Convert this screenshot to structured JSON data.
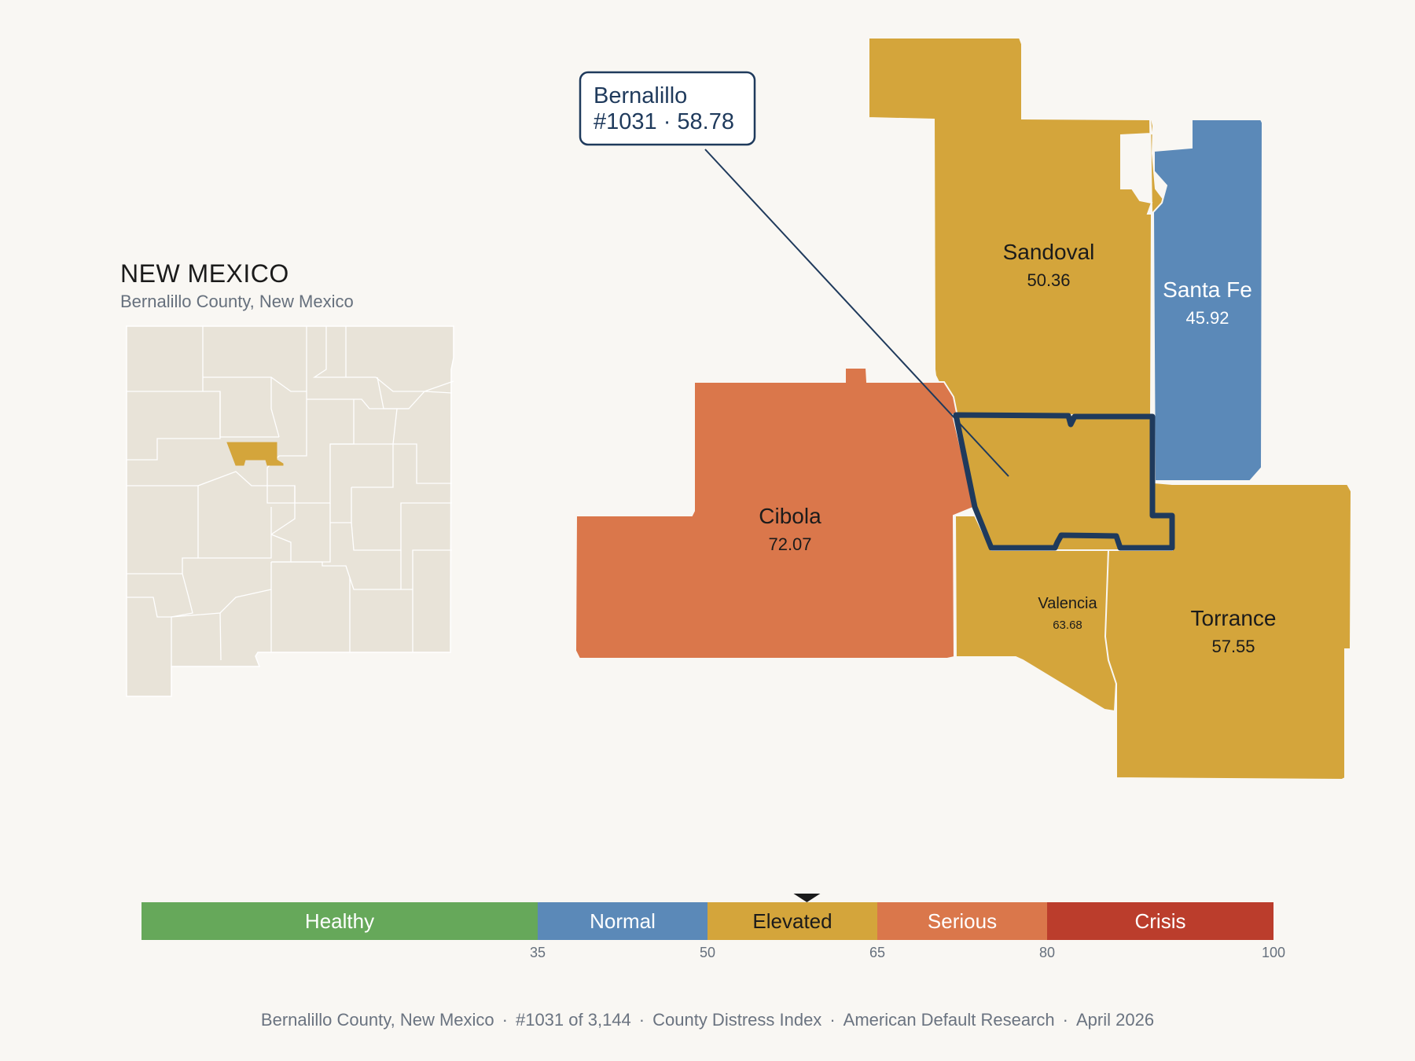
{
  "state": {
    "title": "NEW MEXICO",
    "subtitle": "Bernalillo County, New Mexico"
  },
  "callout": {
    "county": "Bernalillo",
    "rank_score": "#1031 · 58.78"
  },
  "counties": [
    {
      "id": "sandoval",
      "name": "Sandoval",
      "value": "50.36",
      "category": "Elevated"
    },
    {
      "id": "santa-fe",
      "name": "Santa Fe",
      "value": "45.92",
      "category": "Normal"
    },
    {
      "id": "cibola",
      "name": "Cibola",
      "value": "72.07",
      "category": "Serious"
    },
    {
      "id": "bernalillo",
      "name": "Bernalillo",
      "value": "58.78",
      "category": "Elevated"
    },
    {
      "id": "valencia",
      "name": "Valencia",
      "value": "63.68",
      "category": "Elevated"
    },
    {
      "id": "torrance",
      "name": "Torrance",
      "value": "57.55",
      "category": "Elevated"
    }
  ],
  "scale": {
    "min": 0,
    "max": 100,
    "marker_value": 58.78,
    "bands": [
      {
        "label": "Healthy",
        "from": 0,
        "to": 35,
        "color": "#66a85a"
      },
      {
        "label": "Normal",
        "from": 35,
        "to": 50,
        "color": "#5b89b8"
      },
      {
        "label": "Elevated",
        "from": 50,
        "to": 65,
        "color": "#d4a53b"
      },
      {
        "label": "Serious",
        "from": 65,
        "to": 80,
        "color": "#da774b"
      },
      {
        "label": "Crisis",
        "from": 80,
        "to": 100,
        "color": "#bb3d2c"
      }
    ],
    "ticks": [
      "35",
      "50",
      "65",
      "80",
      "100"
    ]
  },
  "colors": {
    "elevated": "#d4a53b",
    "normal": "#5b89b8",
    "serious": "#da774b",
    "highlight_outline": "#1f3a5c",
    "inset_fill": "#e8e3d8"
  },
  "footer": {
    "place": "Bernalillo County, New Mexico",
    "rank": "#1031 of 3,144",
    "index": "County Distress Index",
    "source": "American Default Research",
    "date": "April 2026"
  }
}
